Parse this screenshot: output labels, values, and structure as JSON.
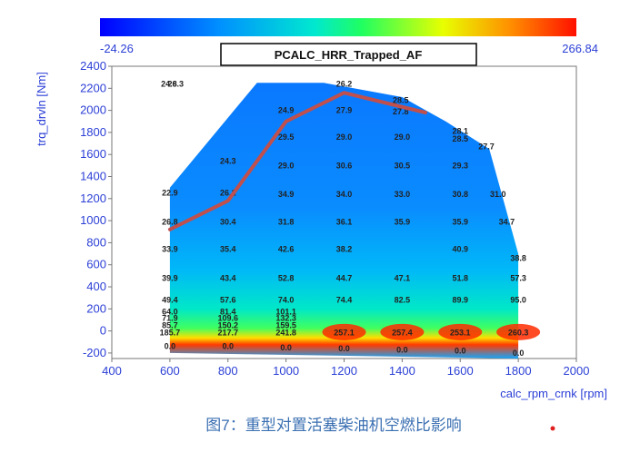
{
  "chart_data": {
    "type": "heatmap",
    "title": "PCALC_HRR_Trapped_AF",
    "xlabel": "calc_rpm_crnk [rpm]",
    "ylabel": "trq_drvln [Nm]",
    "caption": "图7：重型对置活塞柴油机空燃比影响",
    "colorbar": {
      "min": "-24.26",
      "max": "266.84",
      "min_value": -24.26,
      "max_value": 266.84
    },
    "xlim": [
      400,
      2000
    ],
    "ylim": [
      -250,
      2400
    ],
    "x_ticks": [
      "400",
      "600",
      "800",
      "1000",
      "1200",
      "1400",
      "1600",
      "1800",
      "2000"
    ],
    "y_ticks": [
      "-200",
      "0",
      "200",
      "400",
      "600",
      "800",
      "1000",
      "1200",
      "1400",
      "1600",
      "1800",
      "2000",
      "2200",
      "2400"
    ],
    "grid": false,
    "labels": [
      {
        "x": 597,
        "y": 2240,
        "text": "24.8"
      },
      {
        "x": 620,
        "y": 2240,
        "text": "26.3"
      },
      {
        "x": 1200,
        "y": 2240,
        "text": "26.2"
      },
      {
        "x": 1000,
        "y": 2000,
        "text": "24.9"
      },
      {
        "x": 1200,
        "y": 2000,
        "text": "27.9"
      },
      {
        "x": 1395,
        "y": 2090,
        "text": "28.5"
      },
      {
        "x": 1395,
        "y": 1990,
        "text": "27.8"
      },
      {
        "x": 1000,
        "y": 1760,
        "text": "29.5"
      },
      {
        "x": 1200,
        "y": 1760,
        "text": "29.0"
      },
      {
        "x": 1400,
        "y": 1760,
        "text": "29.0"
      },
      {
        "x": 1600,
        "y": 1810,
        "text": "28.1"
      },
      {
        "x": 1600,
        "y": 1740,
        "text": "28.5"
      },
      {
        "x": 1690,
        "y": 1670,
        "text": "27.7"
      },
      {
        "x": 800,
        "y": 1540,
        "text": "24.3"
      },
      {
        "x": 1000,
        "y": 1500,
        "text": "29.0"
      },
      {
        "x": 1200,
        "y": 1500,
        "text": "30.6"
      },
      {
        "x": 1400,
        "y": 1500,
        "text": "30.5"
      },
      {
        "x": 1600,
        "y": 1500,
        "text": "29.3"
      },
      {
        "x": 600,
        "y": 1250,
        "text": "22.9"
      },
      {
        "x": 800,
        "y": 1250,
        "text": "26.1"
      },
      {
        "x": 1000,
        "y": 1240,
        "text": "34.9"
      },
      {
        "x": 1200,
        "y": 1240,
        "text": "34.0"
      },
      {
        "x": 1400,
        "y": 1240,
        "text": "33.0"
      },
      {
        "x": 1600,
        "y": 1240,
        "text": "30.8"
      },
      {
        "x": 1730,
        "y": 1240,
        "text": "31.0"
      },
      {
        "x": 600,
        "y": 990,
        "text": "26.8"
      },
      {
        "x": 800,
        "y": 990,
        "text": "30.4"
      },
      {
        "x": 1000,
        "y": 990,
        "text": "31.8"
      },
      {
        "x": 1200,
        "y": 990,
        "text": "36.1"
      },
      {
        "x": 1400,
        "y": 990,
        "text": "35.9"
      },
      {
        "x": 1600,
        "y": 990,
        "text": "35.9"
      },
      {
        "x": 1760,
        "y": 990,
        "text": "34.7"
      },
      {
        "x": 600,
        "y": 740,
        "text": "33.9"
      },
      {
        "x": 800,
        "y": 740,
        "text": "35.4"
      },
      {
        "x": 1000,
        "y": 740,
        "text": "42.6"
      },
      {
        "x": 1200,
        "y": 740,
        "text": "38.2"
      },
      {
        "x": 1600,
        "y": 740,
        "text": "40.9"
      },
      {
        "x": 1800,
        "y": 660,
        "text": "38.8"
      },
      {
        "x": 600,
        "y": 480,
        "text": "39.9"
      },
      {
        "x": 800,
        "y": 480,
        "text": "43.4"
      },
      {
        "x": 1000,
        "y": 480,
        "text": "52.8"
      },
      {
        "x": 1200,
        "y": 480,
        "text": "44.7"
      },
      {
        "x": 1400,
        "y": 480,
        "text": "47.1"
      },
      {
        "x": 1600,
        "y": 480,
        "text": "51.8"
      },
      {
        "x": 1800,
        "y": 480,
        "text": "57.3"
      },
      {
        "x": 600,
        "y": 280,
        "text": "49.4"
      },
      {
        "x": 800,
        "y": 280,
        "text": "57.6"
      },
      {
        "x": 1000,
        "y": 280,
        "text": "74.0"
      },
      {
        "x": 1200,
        "y": 280,
        "text": "74.4"
      },
      {
        "x": 1400,
        "y": 280,
        "text": "82.5"
      },
      {
        "x": 1600,
        "y": 280,
        "text": "89.9"
      },
      {
        "x": 1800,
        "y": 280,
        "text": "95.0"
      },
      {
        "x": 600,
        "y": 175,
        "text": "64.0"
      },
      {
        "x": 800,
        "y": 175,
        "text": "81.4"
      },
      {
        "x": 1000,
        "y": 175,
        "text": "101.1"
      },
      {
        "x": 600,
        "y": 115,
        "text": "71.9"
      },
      {
        "x": 800,
        "y": 115,
        "text": "109.6"
      },
      {
        "x": 1000,
        "y": 115,
        "text": "132.3"
      },
      {
        "x": 600,
        "y": 50,
        "text": "85.7"
      },
      {
        "x": 800,
        "y": 50,
        "text": "150.2"
      },
      {
        "x": 1000,
        "y": 50,
        "text": "159.5"
      },
      {
        "x": 600,
        "y": -15,
        "text": "185.7"
      },
      {
        "x": 800,
        "y": -15,
        "text": "217.7"
      },
      {
        "x": 1000,
        "y": -15,
        "text": "241.8"
      },
      {
        "x": 1200,
        "y": -15,
        "text": "257.1"
      },
      {
        "x": 1400,
        "y": -15,
        "text": "257.4"
      },
      {
        "x": 1600,
        "y": -15,
        "text": "253.1"
      },
      {
        "x": 1800,
        "y": -15,
        "text": "260.3"
      },
      {
        "x": 600,
        "y": -140,
        "text": "0.0"
      },
      {
        "x": 800,
        "y": -140,
        "text": "0.0"
      },
      {
        "x": 1000,
        "y": -150,
        "text": "0.0"
      },
      {
        "x": 1200,
        "y": -160,
        "text": "0.0"
      },
      {
        "x": 1400,
        "y": -170,
        "text": "0.0"
      },
      {
        "x": 1600,
        "y": -180,
        "text": "0.0"
      },
      {
        "x": 1800,
        "y": -200,
        "text": "0.0"
      }
    ],
    "series": [
      {
        "type": "line",
        "color": "#c0504d",
        "x": [
          600,
          800,
          1000,
          1200,
          1480
        ],
        "y": [
          920,
          1180,
          1900,
          2160,
          1980
        ]
      }
    ],
    "boundary": {
      "x": [
        600,
        600,
        900,
        1130,
        1400,
        1550,
        1700,
        1800,
        1800,
        600
      ],
      "y": [
        -200,
        1300,
        2250,
        2250,
        2120,
        1900,
        1650,
        700,
        -250,
        -200
      ]
    }
  },
  "colors": {
    "axis": "#2b3fd6",
    "line": "#c0504d"
  }
}
